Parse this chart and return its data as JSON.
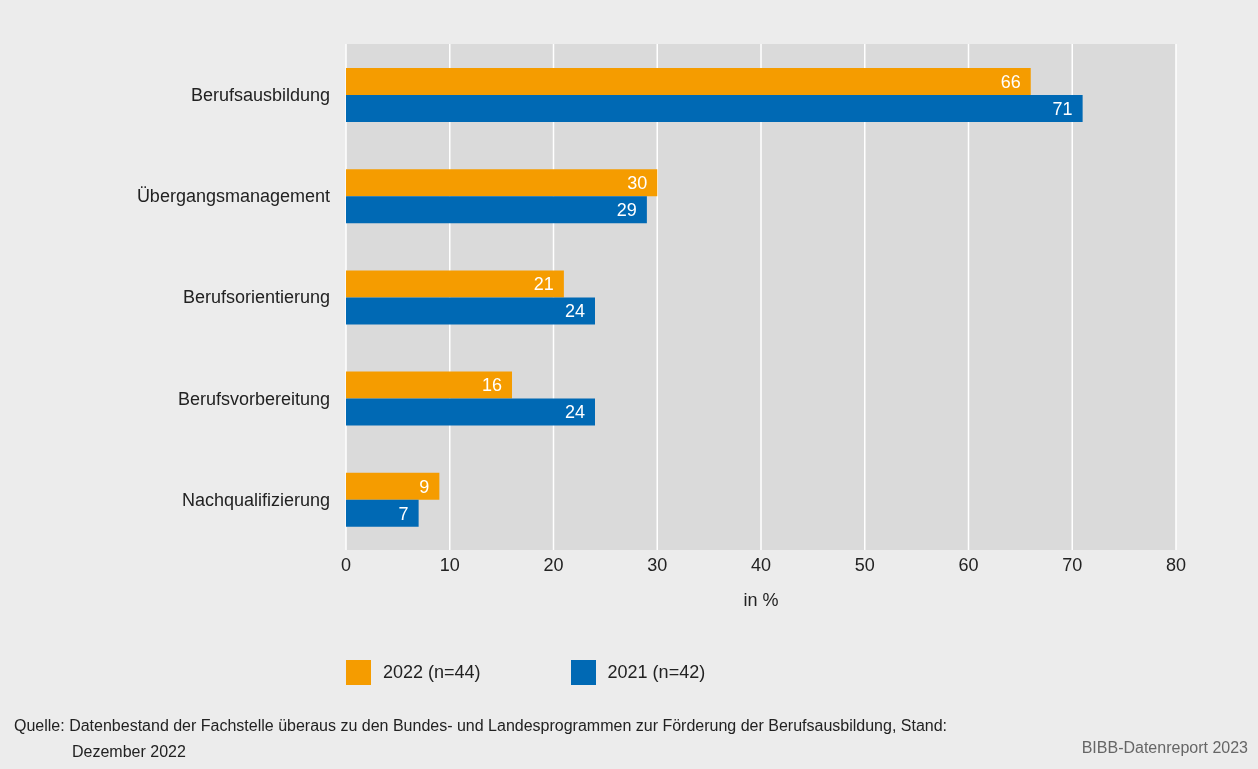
{
  "chart_data": {
    "type": "bar",
    "orientation": "horizontal",
    "categories": [
      "Berufsausbildung",
      "Übergangsmanagement",
      "Berufsorientierung",
      "Berufsvorbereitung",
      "Nachqualifizierung"
    ],
    "series": [
      {
        "name": "2022 (n=44)",
        "color": "#f59c00",
        "values": [
          66,
          30,
          21,
          16,
          9
        ]
      },
      {
        "name": "2021 (n=42)",
        "color": "#0069b4",
        "values": [
          71,
          29,
          24,
          24,
          7
        ]
      }
    ],
    "xlabel": "in %",
    "xlim": [
      0,
      80
    ],
    "xticks": [
      0,
      10,
      20,
      30,
      40,
      50,
      60,
      70,
      80
    ],
    "grid": "x",
    "legend": "bottom",
    "data_labels": true,
    "annotations": [
      "Quelle: Datenbestand der Fachstelle überaus zu den Bundes- und Landesprogrammen zur Förderung der Berufsausbildung, Stand: Dezember 2022",
      "BIBB-Datenreport 2023"
    ]
  }
}
